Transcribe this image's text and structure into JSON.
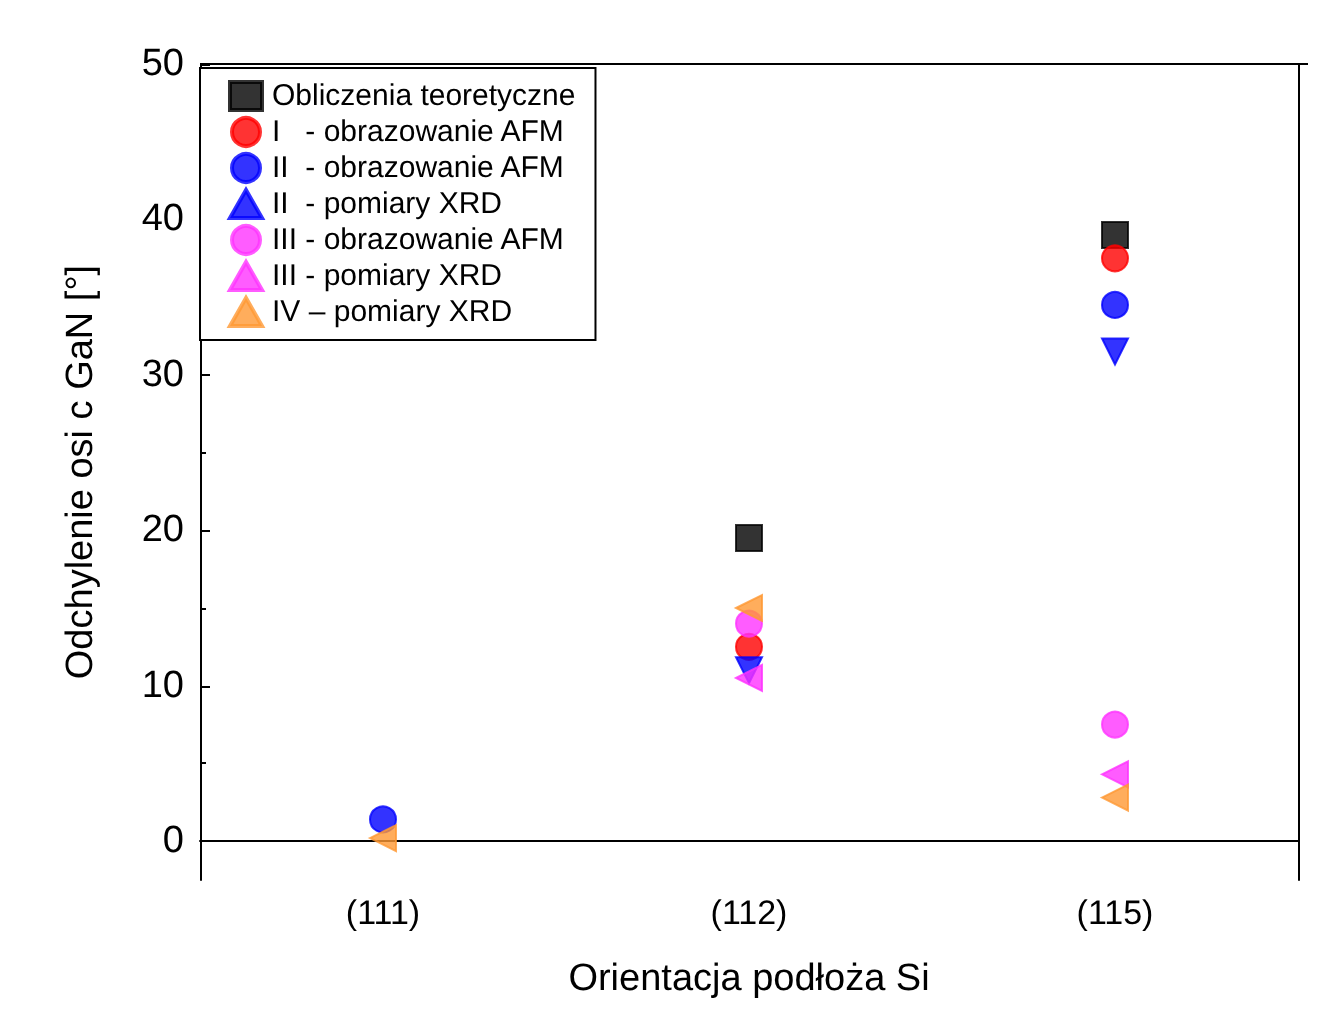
{
  "chart_data": {
    "type": "scatter",
    "xlabel": "Orientacja podłoża Si",
    "ylabel": "Odchylenie osi c GaN [°]",
    "categories": [
      "(111)",
      "(112)",
      "(115)"
    ],
    "ylim": [
      -2.5,
      50
    ],
    "yticks": [
      0,
      10,
      20,
      30,
      40,
      50
    ],
    "grid": false,
    "legend": "top left",
    "series": [
      {
        "name": "Obliczenia teoretyczne",
        "color": "#000000",
        "marker": "square",
        "values": [
          null,
          19.5,
          39
        ]
      },
      {
        "name": "I   - obrazowanie AFM",
        "color": "#ff0000",
        "marker": "circle",
        "values": [
          null,
          12.5,
          37.5
        ]
      },
      {
        "name": "II  - obrazowanie AFM",
        "color": "#0000ff",
        "marker": "circle",
        "values": [
          1.4,
          null,
          34.5
        ]
      },
      {
        "name": "II  - pomiary XRD",
        "color": "#0000ff",
        "marker": "triangle-down",
        "values": [
          null,
          11,
          31.5
        ]
      },
      {
        "name": "III - obrazowanie AFM",
        "color": "#ff33ff",
        "marker": "circle",
        "values": [
          null,
          14,
          7.5
        ]
      },
      {
        "name": "III - pomiary XRD",
        "color": "#ff33ff",
        "marker": "triangle-left",
        "values": [
          null,
          10.5,
          4.3
        ]
      },
      {
        "name": "IV – pomiary XRD",
        "color": "#ff9933",
        "marker": "triangle-left",
        "values": [
          0.2,
          15,
          2.8
        ]
      }
    ]
  }
}
